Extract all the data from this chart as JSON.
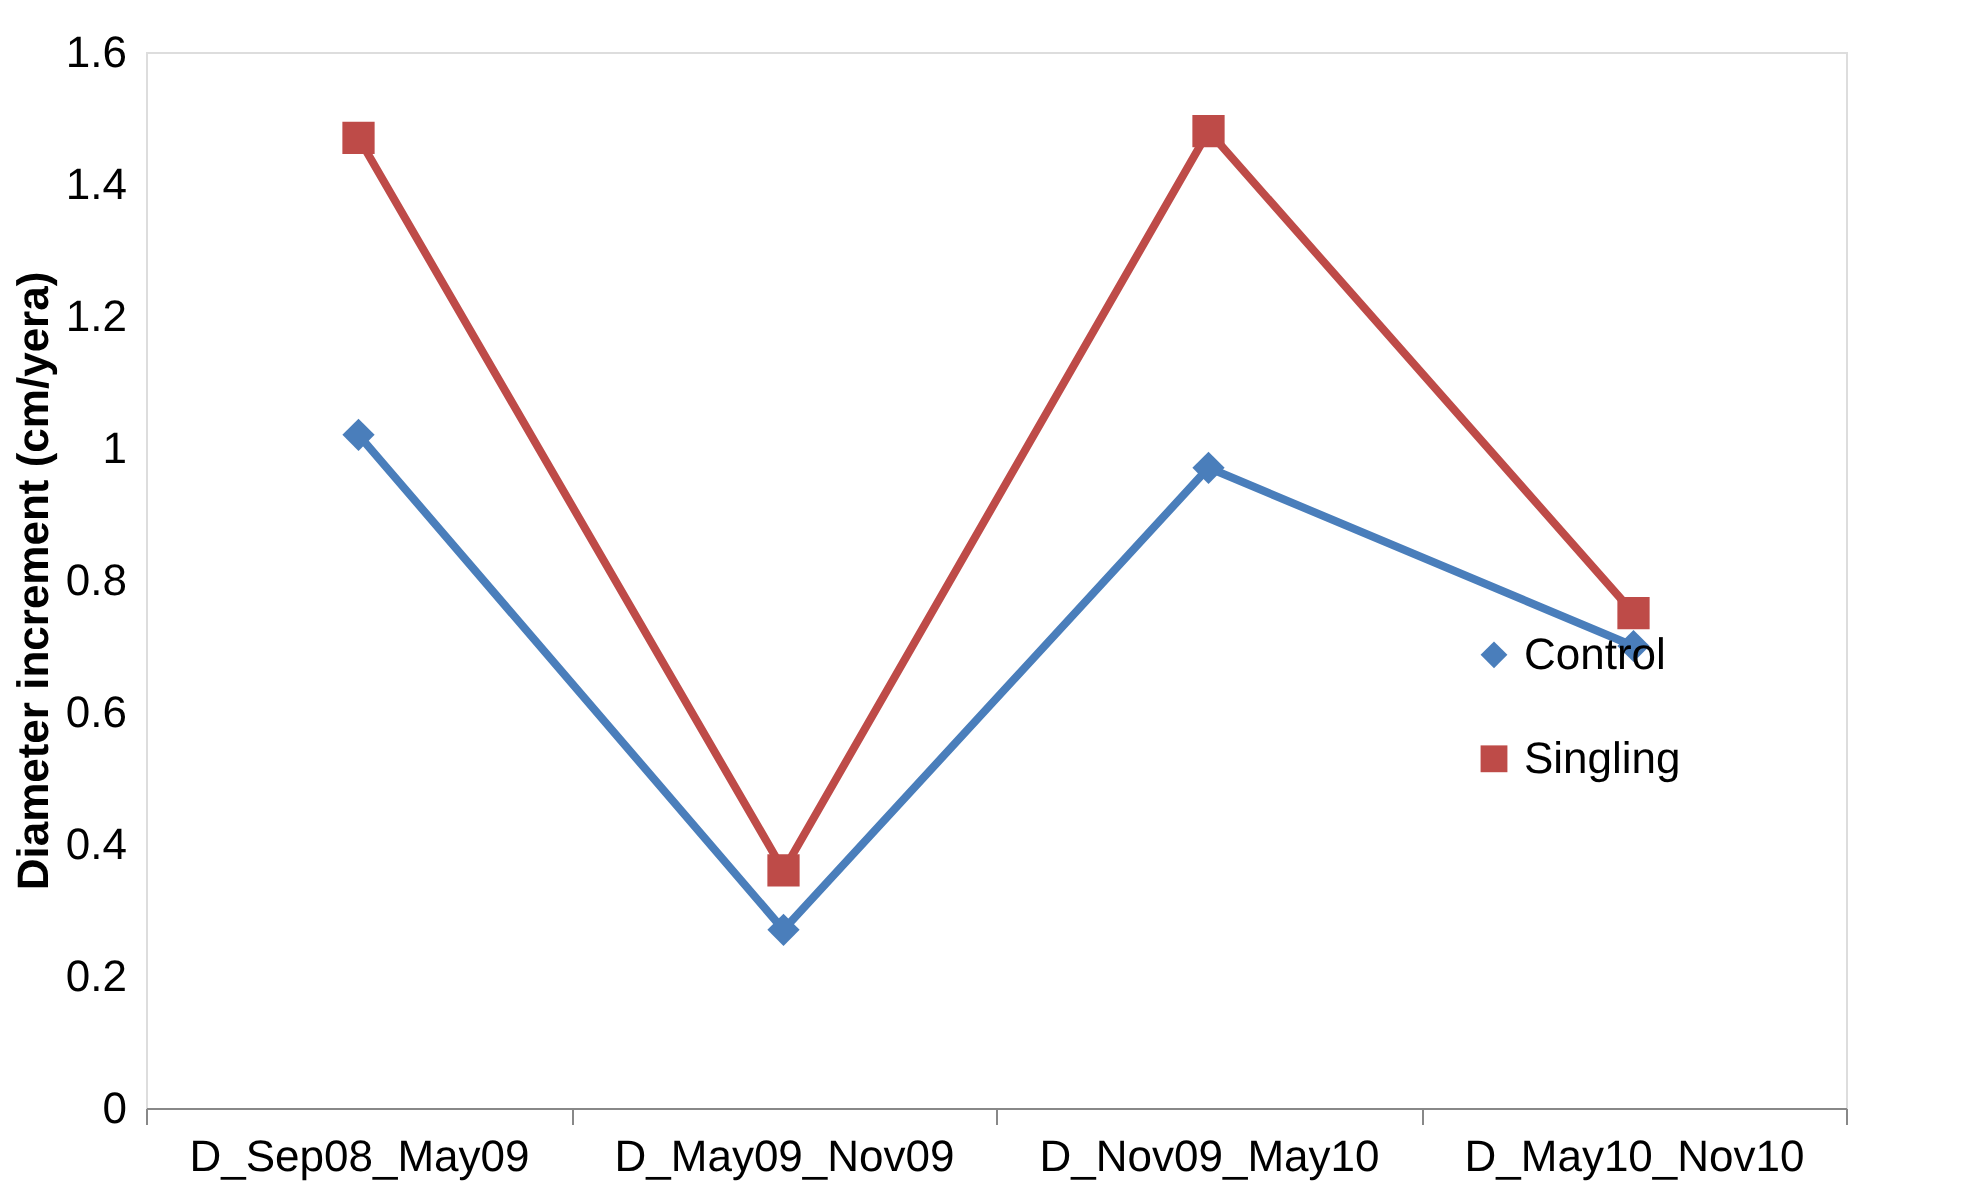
{
  "chart_data": {
    "type": "line",
    "ylabel": "Diameter increment (cm/yera)",
    "categories": [
      "D_Sep08_May09",
      "D_May09_Nov09",
      "D_Nov09_May10",
      "D_May10_Nov10"
    ],
    "series": [
      {
        "name": "Control",
        "color": "#4a7ebb",
        "marker": "diamond",
        "values": [
          1.02,
          0.27,
          0.97,
          0.7
        ]
      },
      {
        "name": "Singling",
        "color": "#be4b48",
        "marker": "square",
        "values": [
          1.47,
          0.36,
          1.48,
          0.75
        ]
      }
    ],
    "ylim": [
      0,
      1.6
    ],
    "yticks": [
      0,
      0.2,
      0.4,
      0.6,
      0.8,
      1,
      1.2,
      1.4,
      1.6
    ],
    "grid": false,
    "legend": "right",
    "line_style": "solid"
  }
}
